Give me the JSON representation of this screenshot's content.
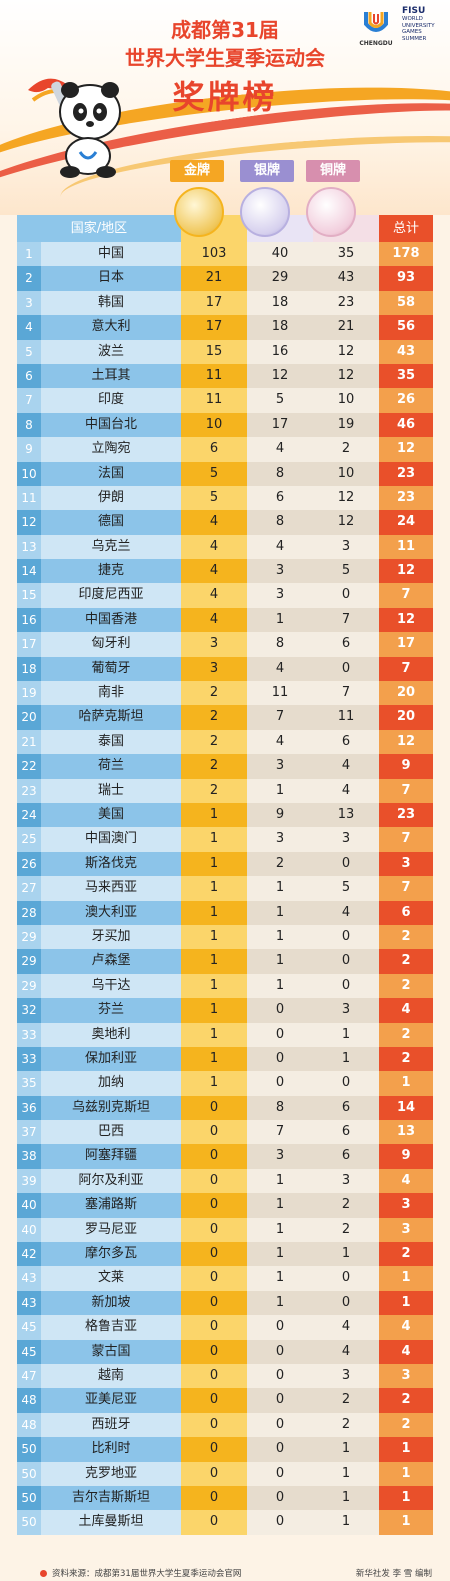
{
  "header": {
    "title_line1": "成都第31届",
    "title_line2": "世界大学生夏季运动会",
    "title_line3": "奖牌榜",
    "logo_text": "CHENGDU",
    "fisu_title": "FISU",
    "fisu_lines": [
      "WORLD",
      "UNIVERSITY",
      "GAMES",
      "SUMMER"
    ]
  },
  "medals": {
    "gold": "金牌",
    "silver": "银牌",
    "bronze": "铜牌"
  },
  "columns": {
    "country": "国家/地区",
    "total": "总计"
  },
  "colors": {
    "gold": "#f5b41e",
    "gold_light": "#fbd56a",
    "silver": "#9a8fd1",
    "bronze": "#d78fae",
    "rank_dark": "#5aa7d6",
    "rank_light": "#a9d3ee",
    "name_dark": "#8cc4e9",
    "name_light": "#cfe6f5",
    "cell_dark": "#e6dccd",
    "cell_light": "#f4ede2",
    "total_dark": "#e9502a",
    "total_light": "#f3a04c",
    "header_row": "#8ec6ea"
  },
  "rows": [
    [
      "1",
      "中国",
      "103",
      "40",
      "35",
      "178"
    ],
    [
      "2",
      "日本",
      "21",
      "29",
      "43",
      "93"
    ],
    [
      "3",
      "韩国",
      "17",
      "18",
      "23",
      "58"
    ],
    [
      "4",
      "意大利",
      "17",
      "18",
      "21",
      "56"
    ],
    [
      "5",
      "波兰",
      "15",
      "16",
      "12",
      "43"
    ],
    [
      "6",
      "土耳其",
      "11",
      "12",
      "12",
      "35"
    ],
    [
      "7",
      "印度",
      "11",
      "5",
      "10",
      "26"
    ],
    [
      "8",
      "中国台北",
      "10",
      "17",
      "19",
      "46"
    ],
    [
      "9",
      "立陶宛",
      "6",
      "4",
      "2",
      "12"
    ],
    [
      "10",
      "法国",
      "5",
      "8",
      "10",
      "23"
    ],
    [
      "11",
      "伊朗",
      "5",
      "6",
      "12",
      "23"
    ],
    [
      "12",
      "德国",
      "4",
      "8",
      "12",
      "24"
    ],
    [
      "13",
      "乌克兰",
      "4",
      "4",
      "3",
      "11"
    ],
    [
      "14",
      "捷克",
      "4",
      "3",
      "5",
      "12"
    ],
    [
      "15",
      "印度尼西亚",
      "4",
      "3",
      "0",
      "7"
    ],
    [
      "16",
      "中国香港",
      "4",
      "1",
      "7",
      "12"
    ],
    [
      "17",
      "匈牙利",
      "3",
      "8",
      "6",
      "17"
    ],
    [
      "18",
      "葡萄牙",
      "3",
      "4",
      "0",
      "7"
    ],
    [
      "19",
      "南非",
      "2",
      "11",
      "7",
      "20"
    ],
    [
      "20",
      "哈萨克斯坦",
      "2",
      "7",
      "11",
      "20"
    ],
    [
      "21",
      "泰国",
      "2",
      "4",
      "6",
      "12"
    ],
    [
      "22",
      "荷兰",
      "2",
      "3",
      "4",
      "9"
    ],
    [
      "23",
      "瑞士",
      "2",
      "1",
      "4",
      "7"
    ],
    [
      "24",
      "美国",
      "1",
      "9",
      "13",
      "23"
    ],
    [
      "25",
      "中国澳门",
      "1",
      "3",
      "3",
      "7"
    ],
    [
      "26",
      "斯洛伐克",
      "1",
      "2",
      "0",
      "3"
    ],
    [
      "27",
      "马来西亚",
      "1",
      "1",
      "5",
      "7"
    ],
    [
      "28",
      "澳大利亚",
      "1",
      "1",
      "4",
      "6"
    ],
    [
      "29",
      "牙买加",
      "1",
      "1",
      "0",
      "2"
    ],
    [
      "29",
      "卢森堡",
      "1",
      "1",
      "0",
      "2"
    ],
    [
      "29",
      "乌干达",
      "1",
      "1",
      "0",
      "2"
    ],
    [
      "32",
      "芬兰",
      "1",
      "0",
      "3",
      "4"
    ],
    [
      "33",
      "奥地利",
      "1",
      "0",
      "1",
      "2"
    ],
    [
      "33",
      "保加利亚",
      "1",
      "0",
      "1",
      "2"
    ],
    [
      "35",
      "加纳",
      "1",
      "0",
      "0",
      "1"
    ],
    [
      "36",
      "乌兹别克斯坦",
      "0",
      "8",
      "6",
      "14"
    ],
    [
      "37",
      "巴西",
      "0",
      "7",
      "6",
      "13"
    ],
    [
      "38",
      "阿塞拜疆",
      "0",
      "3",
      "6",
      "9"
    ],
    [
      "39",
      "阿尔及利亚",
      "0",
      "1",
      "3",
      "4"
    ],
    [
      "40",
      "塞浦路斯",
      "0",
      "1",
      "2",
      "3"
    ],
    [
      "40",
      "罗马尼亚",
      "0",
      "1",
      "2",
      "3"
    ],
    [
      "42",
      "摩尔多瓦",
      "0",
      "1",
      "1",
      "2"
    ],
    [
      "43",
      "文莱",
      "0",
      "1",
      "0",
      "1"
    ],
    [
      "43",
      "新加坡",
      "0",
      "1",
      "0",
      "1"
    ],
    [
      "45",
      "格鲁吉亚",
      "0",
      "0",
      "4",
      "4"
    ],
    [
      "45",
      "蒙古国",
      "0",
      "0",
      "4",
      "4"
    ],
    [
      "47",
      "越南",
      "0",
      "0",
      "3",
      "3"
    ],
    [
      "48",
      "亚美尼亚",
      "0",
      "0",
      "2",
      "2"
    ],
    [
      "48",
      "西班牙",
      "0",
      "0",
      "2",
      "2"
    ],
    [
      "50",
      "比利时",
      "0",
      "0",
      "1",
      "1"
    ],
    [
      "50",
      "克罗地亚",
      "0",
      "0",
      "1",
      "1"
    ],
    [
      "50",
      "吉尔吉斯斯坦",
      "0",
      "0",
      "1",
      "1"
    ],
    [
      "50",
      "土库曼斯坦",
      "0",
      "0",
      "1",
      "1"
    ]
  ],
  "footer": {
    "source": "资料来源：成都第31届世界大学生夏季运动会官网",
    "editor": "新华社发 李 雪 编制"
  }
}
